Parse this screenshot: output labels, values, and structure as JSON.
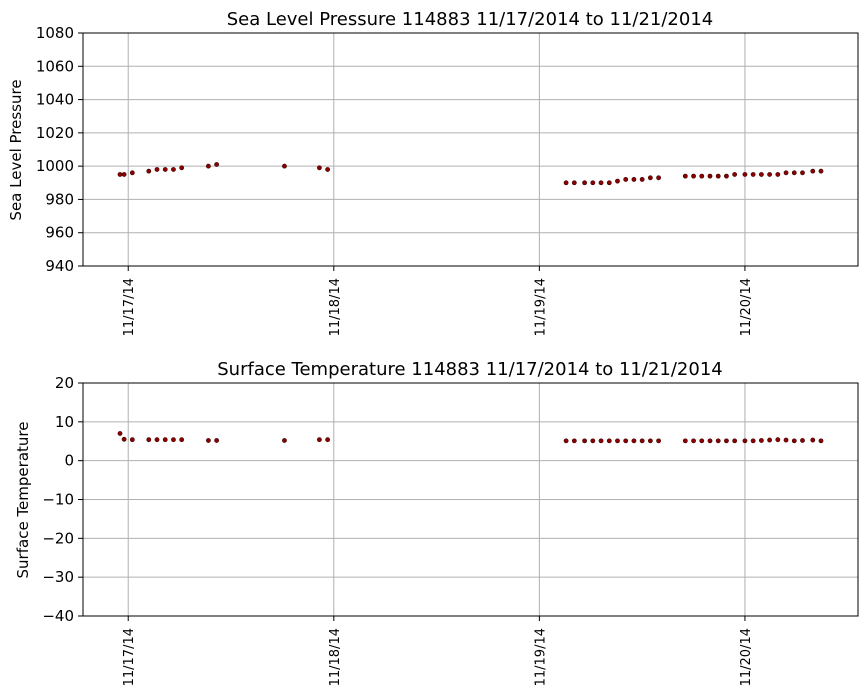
{
  "chart_data": [
    {
      "type": "scatter",
      "title": "Sea Level Pressure 114883  11/17/2014 to 11/21/2014",
      "xlabel": "",
      "ylabel": "Sea Level Pressure",
      "xlim": [
        -0.22,
        3.55
      ],
      "ylim": [
        940,
        1080
      ],
      "yticks": [
        940,
        960,
        980,
        1000,
        1020,
        1040,
        1060,
        1080
      ],
      "xticks": [
        {
          "x": 0,
          "label": "11/17/14"
        },
        {
          "x": 1,
          "label": "11/18/14"
        },
        {
          "x": 2,
          "label": "11/19/14"
        },
        {
          "x": 3,
          "label": "11/20/14"
        }
      ],
      "grid": true,
      "marker_color": "#8b0000",
      "points": [
        {
          "x": -0.04,
          "y": 995
        },
        {
          "x": -0.02,
          "y": 995
        },
        {
          "x": 0.02,
          "y": 996
        },
        {
          "x": 0.1,
          "y": 997
        },
        {
          "x": 0.14,
          "y": 998
        },
        {
          "x": 0.18,
          "y": 998
        },
        {
          "x": 0.22,
          "y": 998
        },
        {
          "x": 0.26,
          "y": 999
        },
        {
          "x": 0.39,
          "y": 1000
        },
        {
          "x": 0.43,
          "y": 1001
        },
        {
          "x": 0.76,
          "y": 1000
        },
        {
          "x": 0.93,
          "y": 999
        },
        {
          "x": 0.97,
          "y": 998
        },
        {
          "x": 2.13,
          "y": 990
        },
        {
          "x": 2.17,
          "y": 990
        },
        {
          "x": 2.22,
          "y": 990
        },
        {
          "x": 2.26,
          "y": 990
        },
        {
          "x": 2.3,
          "y": 990
        },
        {
          "x": 2.34,
          "y": 990
        },
        {
          "x": 2.38,
          "y": 991
        },
        {
          "x": 2.42,
          "y": 992
        },
        {
          "x": 2.46,
          "y": 992
        },
        {
          "x": 2.5,
          "y": 992
        },
        {
          "x": 2.54,
          "y": 993
        },
        {
          "x": 2.58,
          "y": 993
        },
        {
          "x": 2.71,
          "y": 994
        },
        {
          "x": 2.75,
          "y": 994
        },
        {
          "x": 2.79,
          "y": 994
        },
        {
          "x": 2.83,
          "y": 994
        },
        {
          "x": 2.87,
          "y": 994
        },
        {
          "x": 2.91,
          "y": 994
        },
        {
          "x": 2.95,
          "y": 995
        },
        {
          "x": 3.0,
          "y": 995
        },
        {
          "x": 3.04,
          "y": 995
        },
        {
          "x": 3.08,
          "y": 995
        },
        {
          "x": 3.12,
          "y": 995
        },
        {
          "x": 3.16,
          "y": 995
        },
        {
          "x": 3.2,
          "y": 996
        },
        {
          "x": 3.24,
          "y": 996
        },
        {
          "x": 3.28,
          "y": 996
        },
        {
          "x": 3.33,
          "y": 997
        },
        {
          "x": 3.37,
          "y": 997
        }
      ]
    },
    {
      "type": "scatter",
      "title": "Surface Temperature 114883  11/17/2014 to 11/21/2014",
      "xlabel": "",
      "ylabel": "Surface Temperature",
      "xlim": [
        -0.22,
        3.55
      ],
      "ylim": [
        -40,
        20
      ],
      "yticks": [
        -40,
        -30,
        -20,
        -10,
        0,
        10,
        20
      ],
      "xticks": [
        {
          "x": 0,
          "label": "11/17/14"
        },
        {
          "x": 1,
          "label": "11/18/14"
        },
        {
          "x": 2,
          "label": "11/19/14"
        },
        {
          "x": 3,
          "label": "11/20/14"
        }
      ],
      "grid": true,
      "marker_color": "#8b0000",
      "points": [
        {
          "x": -0.04,
          "y": 7.0
        },
        {
          "x": -0.02,
          "y": 5.5
        },
        {
          "x": 0.02,
          "y": 5.4
        },
        {
          "x": 0.1,
          "y": 5.4
        },
        {
          "x": 0.14,
          "y": 5.4
        },
        {
          "x": 0.18,
          "y": 5.4
        },
        {
          "x": 0.22,
          "y": 5.4
        },
        {
          "x": 0.26,
          "y": 5.4
        },
        {
          "x": 0.39,
          "y": 5.2
        },
        {
          "x": 0.43,
          "y": 5.2
        },
        {
          "x": 0.76,
          "y": 5.2
        },
        {
          "x": 0.93,
          "y": 5.4
        },
        {
          "x": 0.97,
          "y": 5.4
        },
        {
          "x": 2.13,
          "y": 5.1
        },
        {
          "x": 2.17,
          "y": 5.1
        },
        {
          "x": 2.22,
          "y": 5.1
        },
        {
          "x": 2.26,
          "y": 5.1
        },
        {
          "x": 2.3,
          "y": 5.1
        },
        {
          "x": 2.34,
          "y": 5.1
        },
        {
          "x": 2.38,
          "y": 5.1
        },
        {
          "x": 2.42,
          "y": 5.1
        },
        {
          "x": 2.46,
          "y": 5.1
        },
        {
          "x": 2.5,
          "y": 5.1
        },
        {
          "x": 2.54,
          "y": 5.1
        },
        {
          "x": 2.58,
          "y": 5.1
        },
        {
          "x": 2.71,
          "y": 5.1
        },
        {
          "x": 2.75,
          "y": 5.1
        },
        {
          "x": 2.79,
          "y": 5.1
        },
        {
          "x": 2.83,
          "y": 5.1
        },
        {
          "x": 2.87,
          "y": 5.1
        },
        {
          "x": 2.91,
          "y": 5.1
        },
        {
          "x": 2.95,
          "y": 5.1
        },
        {
          "x": 3.0,
          "y": 5.1
        },
        {
          "x": 3.04,
          "y": 5.1
        },
        {
          "x": 3.08,
          "y": 5.2
        },
        {
          "x": 3.12,
          "y": 5.3
        },
        {
          "x": 3.16,
          "y": 5.4
        },
        {
          "x": 3.2,
          "y": 5.3
        },
        {
          "x": 3.24,
          "y": 5.1
        },
        {
          "x": 3.28,
          "y": 5.2
        },
        {
          "x": 3.33,
          "y": 5.3
        },
        {
          "x": 3.37,
          "y": 5.1
        }
      ]
    }
  ]
}
